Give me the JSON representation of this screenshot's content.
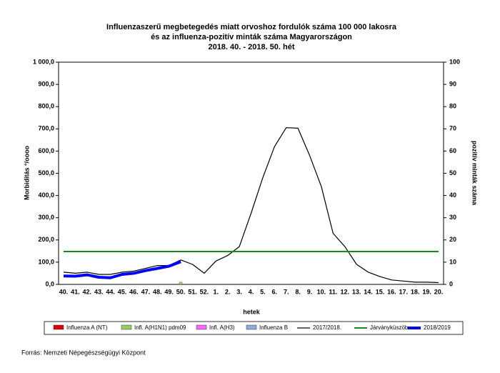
{
  "chart_data": {
    "type": "line",
    "title": [
      "Influenzaszerű megbetegedés miatt orvoshoz fordulók száma 100 000 lakosra",
      "és az influenza-pozitív minták száma Magyarországon",
      "2018. 40. - 2018. 50. hét"
    ],
    "x_label": "hetek",
    "y_label": "Morbiditás °/oooo",
    "y2_label": "pozitív minták száma",
    "source": "Forrás: Nemzeti Népegészségügyi Központ",
    "categories": [
      "40.",
      "41.",
      "42.",
      "43.",
      "44.",
      "45.",
      "46.",
      "47.",
      "48.",
      "49.",
      "50.",
      "51.",
      "52.",
      "1.",
      "2.",
      "3.",
      "4.",
      "5.",
      "6.",
      "7.",
      "8.",
      "9.",
      "10.",
      "11.",
      "12.",
      "13.",
      "14.",
      "15.",
      "16.",
      "17.",
      "18.",
      "19.",
      "20."
    ],
    "ylim": [
      0,
      1000
    ],
    "yticks": [
      {
        "value": 0,
        "label": "0,0"
      },
      {
        "value": 100,
        "label": "100,0"
      },
      {
        "value": 200,
        "label": "200,0"
      },
      {
        "value": 300,
        "label": "300,0"
      },
      {
        "value": 400,
        "label": "400,0"
      },
      {
        "value": 500,
        "label": "500,0"
      },
      {
        "value": 600,
        "label": "600,0"
      },
      {
        "value": 700,
        "label": "700,0"
      },
      {
        "value": 800,
        "label": "800,0"
      },
      {
        "value": 900,
        "label": "900,0"
      },
      {
        "value": 1000,
        "label": "1 000,0"
      }
    ],
    "y2lim": [
      0,
      100
    ],
    "y2ticks": [
      0,
      10,
      20,
      30,
      40,
      50,
      60,
      70,
      80,
      90,
      100
    ],
    "series": [
      {
        "name": "Influenza A (NT)",
        "color": "#e00000",
        "axis": "y2",
        "values": [
          null,
          null,
          null,
          null,
          null,
          null,
          null,
          null,
          null,
          null,
          null,
          null,
          null,
          null,
          null,
          null,
          null,
          null,
          null,
          null,
          null,
          null,
          null,
          null,
          null,
          null,
          null,
          null,
          null,
          null,
          null,
          null,
          null
        ]
      },
      {
        "name": "Infl. A(H1N1) pdm09",
        "color": "#99cc66",
        "axis": "y2",
        "values": [
          null,
          null,
          null,
          null,
          null,
          null,
          null,
          null,
          null,
          null,
          1,
          null,
          null,
          null,
          null,
          null,
          null,
          null,
          null,
          null,
          null,
          null,
          null,
          null,
          null,
          null,
          null,
          null,
          null,
          null,
          null,
          null,
          null
        ]
      },
      {
        "name": "Infl. A(H3)",
        "color": "#ff66ff",
        "axis": "y2",
        "values": [
          null,
          null,
          null,
          null,
          null,
          null,
          null,
          null,
          null,
          null,
          null,
          null,
          null,
          null,
          null,
          null,
          null,
          null,
          null,
          null,
          null,
          null,
          null,
          null,
          null,
          null,
          null,
          null,
          null,
          null,
          null,
          null,
          null
        ]
      },
      {
        "name": "Influenza B",
        "color": "#8eaadb",
        "axis": "y2",
        "values": [
          null,
          null,
          null,
          null,
          null,
          null,
          null,
          null,
          null,
          null,
          null,
          null,
          null,
          null,
          null,
          null,
          null,
          null,
          null,
          null,
          null,
          null,
          null,
          null,
          null,
          null,
          null,
          null,
          null,
          null,
          null,
          null,
          null
        ]
      },
      {
        "name": "2017/2018.",
        "color": "#000000",
        "values": [
          55,
          50,
          55,
          45,
          45,
          55,
          60,
          72,
          85,
          85,
          110,
          90,
          50,
          105,
          130,
          170,
          320,
          480,
          620,
          705,
          703,
          580,
          440,
          230,
          170,
          90,
          55,
          35,
          20,
          15,
          10,
          10,
          8
        ]
      },
      {
        "name": "Járványküszöb",
        "color": "#1a8a1a",
        "values": [
          148,
          148,
          148,
          148,
          148,
          148,
          148,
          148,
          148,
          148,
          148,
          148,
          148,
          148,
          148,
          148,
          148,
          148,
          148,
          148,
          148,
          148,
          148,
          148,
          148,
          148,
          148,
          148,
          148,
          148,
          148,
          148,
          148
        ]
      },
      {
        "name": "2018/2019",
        "color": "#0000ff",
        "values": [
          38,
          37,
          43,
          32,
          30,
          45,
          50,
          62,
          72,
          82,
          102,
          null,
          null,
          null,
          null,
          null,
          null,
          null,
          null,
          null,
          null,
          null,
          null,
          null,
          null,
          null,
          null,
          null,
          null,
          null,
          null,
          null,
          null
        ]
      }
    ]
  }
}
